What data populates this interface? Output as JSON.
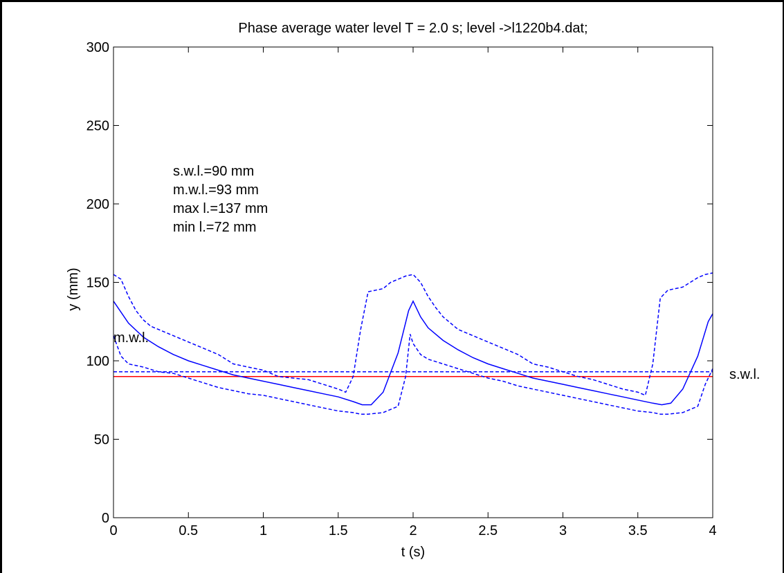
{
  "chart_data": {
    "type": "line",
    "title": "Phase average water level T = 2.0 s;  level ->l1220b4.dat;",
    "xlabel": "t (s)",
    "ylabel": "y (mm)",
    "xlim": [
      0,
      4
    ],
    "ylim": [
      0,
      300
    ],
    "xticks": [
      0,
      0.5,
      1,
      1.5,
      2,
      2.5,
      3,
      3.5,
      4
    ],
    "xtick_labels": [
      "0",
      "0.5",
      "1",
      "1.5",
      "2",
      "2.5",
      "3",
      "3.5",
      "4"
    ],
    "yticks": [
      0,
      50,
      100,
      150,
      200,
      250,
      300
    ],
    "ytick_labels": [
      "0",
      "50",
      "100",
      "150",
      "200",
      "250",
      "300"
    ],
    "grid": false,
    "colors": {
      "series": "#0000ff",
      "swl": "#ff0000",
      "axes": "#000000"
    },
    "series": [
      {
        "style": "solid",
        "color": "#0000ff",
        "x": [
          0,
          0.1,
          0.2,
          0.3,
          0.4,
          0.5,
          0.6,
          0.7,
          0.8,
          0.9,
          1.0,
          1.1,
          1.2,
          1.3,
          1.4,
          1.5,
          1.6,
          1.66,
          1.72,
          1.8,
          1.9,
          1.97,
          2.0,
          2.05,
          2.1,
          2.2,
          2.3,
          2.4,
          2.5,
          2.6,
          2.7,
          2.8,
          2.9,
          3.0,
          3.1,
          3.2,
          3.3,
          3.4,
          3.5,
          3.6,
          3.66,
          3.72,
          3.8,
          3.9,
          3.97,
          4.0
        ],
        "y": [
          138,
          124,
          115,
          109,
          104,
          100,
          97,
          94,
          91,
          89,
          87,
          85,
          83,
          81,
          79,
          77,
          74,
          72,
          72,
          80,
          105,
          132,
          138,
          128,
          121,
          113,
          107,
          102,
          98,
          95,
          92,
          89,
          87,
          85,
          83,
          81,
          79,
          77,
          75,
          73,
          72,
          73,
          82,
          103,
          125,
          130
        ]
      },
      {
        "style": "dashed",
        "color": "#0000ff",
        "x": [
          0,
          0.05,
          0.1,
          0.15,
          0.2,
          0.25,
          0.3,
          0.4,
          0.5,
          0.6,
          0.7,
          0.8,
          0.9,
          1.0,
          1.1,
          1.2,
          1.3,
          1.4,
          1.5,
          1.55,
          1.6,
          1.65,
          1.7,
          1.8,
          1.85,
          1.9,
          1.95,
          2.0,
          2.05,
          2.1,
          2.15,
          2.2,
          2.3,
          2.4,
          2.5,
          2.6,
          2.7,
          2.8,
          2.9,
          3.0,
          3.1,
          3.2,
          3.3,
          3.4,
          3.5,
          3.55,
          3.6,
          3.65,
          3.7,
          3.8,
          3.85,
          3.9,
          3.95,
          4.0
        ],
        "y": [
          155,
          152,
          141,
          132,
          126,
          122,
          120,
          116,
          112,
          108,
          104,
          98,
          96,
          94,
          90,
          89,
          88,
          85,
          82,
          80,
          90,
          120,
          144,
          146,
          150,
          152,
          154,
          155,
          150,
          141,
          134,
          128,
          120,
          116,
          112,
          108,
          104,
          98,
          96,
          93,
          90,
          88,
          85,
          82,
          80,
          78,
          98,
          140,
          145,
          147,
          150,
          153,
          155,
          156
        ]
      },
      {
        "style": "dashed",
        "color": "#0000ff",
        "x": [
          0,
          0.05,
          0.1,
          0.2,
          0.3,
          0.4,
          0.5,
          0.6,
          0.7,
          0.8,
          0.9,
          1.0,
          1.1,
          1.2,
          1.3,
          1.4,
          1.5,
          1.6,
          1.65,
          1.7,
          1.8,
          1.9,
          1.95,
          1.98,
          2.0,
          2.05,
          2.1,
          2.2,
          2.3,
          2.4,
          2.5,
          2.6,
          2.7,
          2.8,
          2.9,
          3.0,
          3.1,
          3.2,
          3.3,
          3.4,
          3.5,
          3.6,
          3.65,
          3.7,
          3.8,
          3.9,
          3.95,
          4.0
        ],
        "y": [
          116,
          103,
          98,
          96,
          93,
          92,
          89,
          86,
          83,
          81,
          79,
          78,
          76,
          74,
          72,
          70,
          68,
          67,
          66,
          66,
          67,
          71,
          90,
          117,
          111,
          104,
          101,
          98,
          95,
          92,
          89,
          87,
          84,
          82,
          80,
          78,
          76,
          74,
          72,
          70,
          68,
          67,
          66,
          66,
          67,
          71,
          85,
          95
        ]
      }
    ],
    "hlines": [
      {
        "y": 90,
        "color": "#ff0000",
        "style": "solid"
      },
      {
        "y": 93,
        "color": "#0000ff",
        "style": "dashed"
      }
    ],
    "annotations": {
      "stats": [
        "s.w.l.=90 mm",
        "m.w.l.=93 mm",
        "max l.=137 mm",
        "min l.=72 mm"
      ],
      "mwl_label": "m.w.l.",
      "swl_label": "s.w.l."
    }
  }
}
